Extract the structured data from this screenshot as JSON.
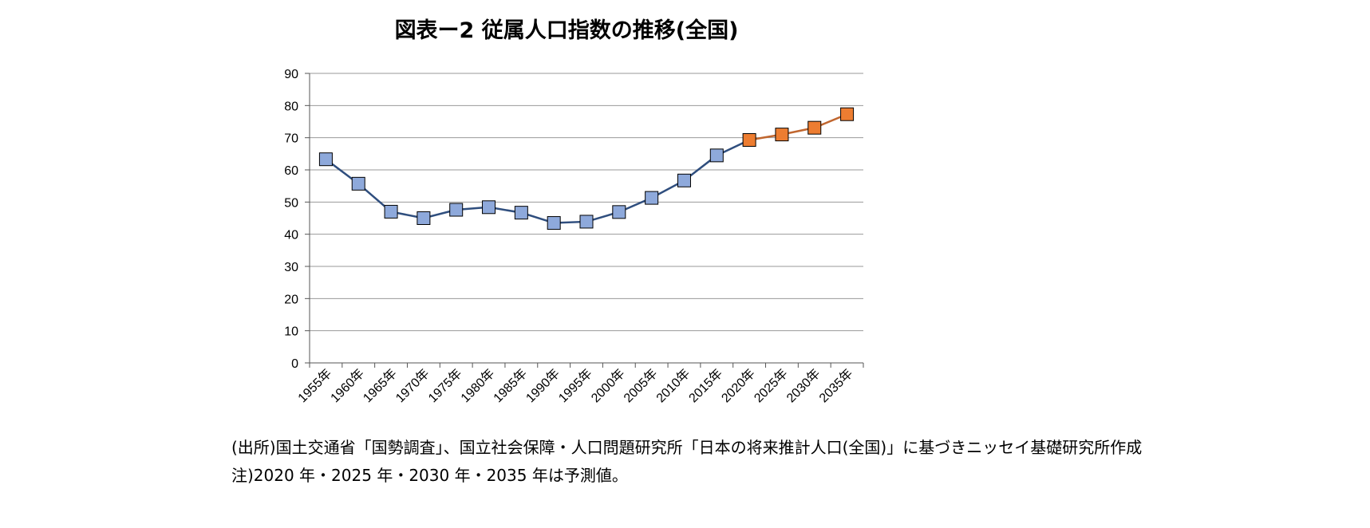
{
  "title": "図表ー2 従属人口指数の推移(全国)",
  "source_note": "(出所)国土交通省「国勢調査」、国立社会保障・人口問題研究所「日本の将来推計人口(全国)」に基づきニッセイ基礎研究所作成",
  "footnote": "注)2020 年・2025 年・2030 年・2035 年は予測値。",
  "colors": {
    "actual_line": "#2F4E7E",
    "actual_marker": "#8EA9DB",
    "forecast_line": "#C0662F",
    "forecast_marker": "#ED7D31",
    "grid": "#9a9a9a"
  },
  "chart_data": {
    "type": "line",
    "categories": [
      "1955年",
      "1960年",
      "1965年",
      "1970年",
      "1975年",
      "1980年",
      "1985年",
      "1990年",
      "1995年",
      "2000年",
      "2005年",
      "2010年",
      "2015年",
      "2020年",
      "2025年",
      "2030年",
      "2035年"
    ],
    "series": [
      {
        "values": [
          63.3,
          55.7,
          47.0,
          45.0,
          47.6,
          48.4,
          46.7,
          43.5,
          43.9,
          46.9,
          51.3,
          56.7,
          64.5,
          null,
          null,
          null,
          null
        ]
      },
      {
        "values": [
          null,
          null,
          null,
          null,
          null,
          null,
          null,
          null,
          null,
          null,
          null,
          null,
          null,
          69.3,
          71.0,
          73.1,
          77.3
        ]
      }
    ],
    "forecast_from": "2020年",
    "ylim": [
      0,
      90
    ],
    "yticks": [
      0,
      10,
      20,
      30,
      40,
      50,
      60,
      70,
      80,
      90
    ],
    "grid": true,
    "legend": "none"
  }
}
